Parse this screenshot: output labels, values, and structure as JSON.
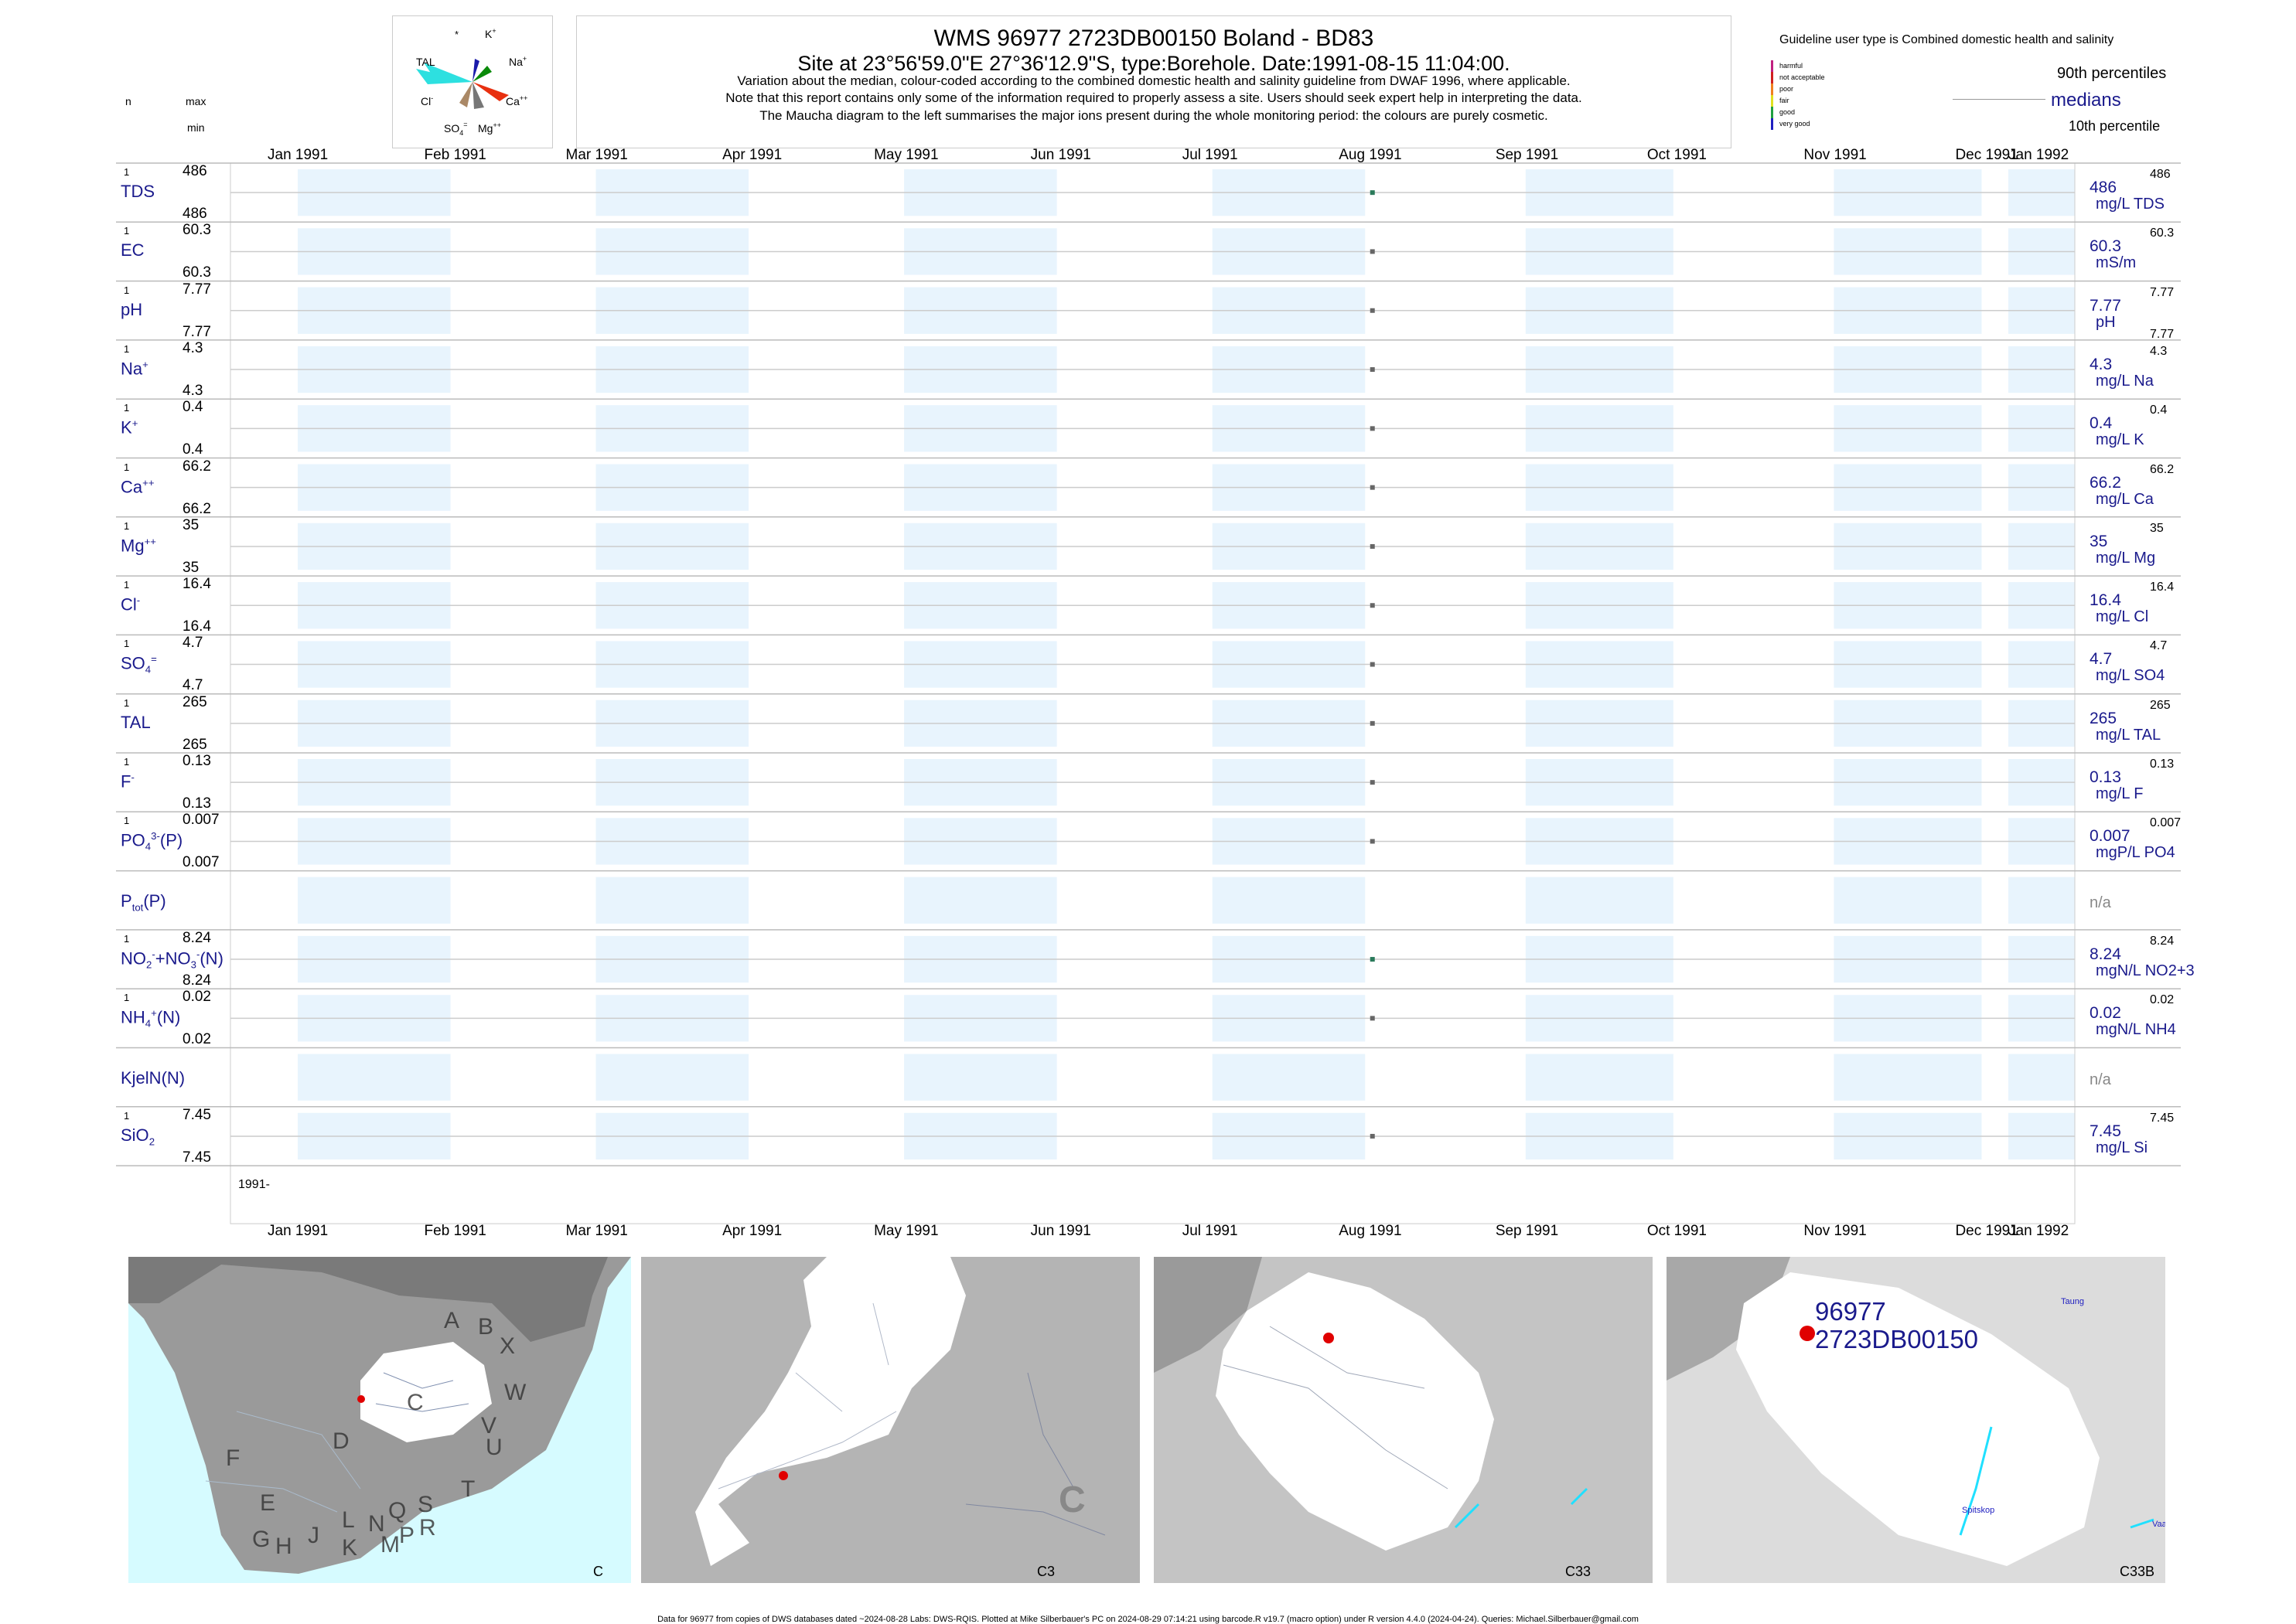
{
  "header": {
    "title": "WMS 96977 2723DB00150 Boland - BD83",
    "subtitle": "Site at 23°56'59.0\"E 27°36'12.9\"S, type:Borehole. Date:1991-08-15 11:04:00.",
    "note1": "Variation about the median,  colour-coded according to the combined domestic health and salinity guideline from DWAF 1996, where applicable.",
    "note2": "Note that this report contains only some of the information required to properly assess a site. Users should seek expert help in interpreting the data.",
    "note3": "The Maucha diagram to the left summarises the major ions present during the whole monitoring period: the colours are purely cosmetic."
  },
  "left_header": {
    "n": "n",
    "max": "max",
    "min": "min"
  },
  "maucha": {
    "star": "*",
    "labels": {
      "k": "K",
      "na": "Na",
      "ca": "Ca",
      "mg": "Mg",
      "so4": "SO",
      "cl": "Cl",
      "tal": "TAL"
    },
    "colors": {
      "k": "#1a1aaa",
      "na": "#0a8a0a",
      "ca": "#e83010",
      "mg": "#777777",
      "so4": "#aa8866",
      "cl": "#ffffff",
      "tal": "#2de0e0"
    }
  },
  "legend": {
    "guideline": "Guideline user type is Combined domestic health and salinity",
    "categories": [
      {
        "label": "harmful",
        "color": "#c02080"
      },
      {
        "label": "not acceptable",
        "color": "#d02020"
      },
      {
        "label": "poor",
        "color": "#f08020"
      },
      {
        "label": "fair",
        "color": "#e0e020"
      },
      {
        "label": "good",
        "color": "#20a040"
      },
      {
        "label": "very good",
        "color": "#2020c0"
      }
    ],
    "p90": "90th percentiles",
    "medians": "medians",
    "p10": "10th percentile"
  },
  "chart_data": {
    "type": "scatter",
    "x_axis": {
      "start": "1991-01-01",
      "end": "1992-01-01",
      "tick_labels": [
        "Jan 1991",
        "Feb 1991",
        "Mar 1991",
        "Apr 1991",
        "May 1991",
        "Jun 1991",
        "Jul 1991",
        "Aug 1991",
        "Sep 1991",
        "Oct 1991",
        "Nov 1991",
        "Dec 1991",
        "Jan 1992"
      ],
      "year_label": "1991-"
    },
    "sample_date": "1991-08-15",
    "shading": "alternate months shaded light blue",
    "series": [
      {
        "label": "TDS",
        "n": "1",
        "max": "486",
        "min": "486",
        "median": "486",
        "unit": "mg/L TDS",
        "p90": "486",
        "p10": "",
        "value": 486,
        "color": "#2a7a5a"
      },
      {
        "label": "EC",
        "n": "1",
        "max": "60.3",
        "min": "60.3",
        "median": "60.3",
        "unit": "mS/m",
        "p90": "60.3",
        "p10": "",
        "value": 60.3,
        "color": "#666666"
      },
      {
        "label": "pH",
        "n": "1",
        "max": "7.77",
        "min": "7.77",
        "median": "7.77",
        "unit": "pH",
        "p90": "7.77",
        "p10": "7.77",
        "value": 7.77,
        "color": "#666666"
      },
      {
        "label": "Na+",
        "n": "1",
        "max": "4.3",
        "min": "4.3",
        "median": "4.3",
        "unit": "mg/L Na",
        "p90": "4.3",
        "p10": "",
        "value": 4.3,
        "color": "#666666"
      },
      {
        "label": "K+",
        "n": "1",
        "max": "0.4",
        "min": "0.4",
        "median": "0.4",
        "unit": "mg/L K",
        "p90": "0.4",
        "p10": "",
        "value": 0.4,
        "color": "#666666"
      },
      {
        "label": "Ca++",
        "n": "1",
        "max": "66.2",
        "min": "66.2",
        "median": "66.2",
        "unit": "mg/L Ca",
        "p90": "66.2",
        "p10": "",
        "value": 66.2,
        "color": "#666666"
      },
      {
        "label": "Mg++",
        "n": "1",
        "max": "35",
        "min": "35",
        "median": "35",
        "unit": "mg/L Mg",
        "p90": "35",
        "p10": "",
        "value": 35,
        "color": "#666666"
      },
      {
        "label": "Cl-",
        "n": "1",
        "max": "16.4",
        "min": "16.4",
        "median": "16.4",
        "unit": "mg/L Cl",
        "p90": "16.4",
        "p10": "",
        "value": 16.4,
        "color": "#666666"
      },
      {
        "label": "SO4=",
        "n": "1",
        "max": "4.7",
        "min": "4.7",
        "median": "4.7",
        "unit": "mg/L SO4",
        "p90": "4.7",
        "p10": "",
        "value": 4.7,
        "color": "#666666"
      },
      {
        "label": "TAL",
        "n": "1",
        "max": "265",
        "min": "265",
        "median": "265",
        "unit": "mg/L TAL",
        "p90": "265",
        "p10": "",
        "value": 265,
        "color": "#666666"
      },
      {
        "label": "F-",
        "n": "1",
        "max": "0.13",
        "min": "0.13",
        "median": "0.13",
        "unit": "mg/L F",
        "p90": "0.13",
        "p10": "",
        "value": 0.13,
        "color": "#666666"
      },
      {
        "label": "PO4(P)",
        "n": "1",
        "max": "0.007",
        "min": "0.007",
        "median": "0.007",
        "unit": "mgP/L PO4",
        "p90": "0.007",
        "p10": "",
        "value": 0.007,
        "color": "#666666"
      },
      {
        "label": "Ptot(P)",
        "n": "",
        "max": "",
        "min": "",
        "median": "n/a",
        "unit": "",
        "p90": "",
        "p10": "",
        "value": null,
        "color": "#666666"
      },
      {
        "label": "NO2+NO3(N)",
        "n": "1",
        "max": "8.24",
        "min": "8.24",
        "median": "8.24",
        "unit": "mgN/L NO2+3",
        "p90": "8.24",
        "p10": "",
        "value": 8.24,
        "color": "#2a7a5a"
      },
      {
        "label": "NH4(N)",
        "n": "1",
        "max": "0.02",
        "min": "0.02",
        "median": "0.02",
        "unit": "mgN/L NH4",
        "p90": "0.02",
        "p10": "",
        "value": 0.02,
        "color": "#666666"
      },
      {
        "label": "KjelN(N)",
        "n": "",
        "max": "",
        "min": "",
        "median": "n/a",
        "unit": "",
        "p90": "",
        "p10": "",
        "value": null,
        "color": "#666666"
      },
      {
        "label": "SiO2",
        "n": "1",
        "max": "7.45",
        "min": "7.45",
        "median": "7.45",
        "unit": "mg/L Si",
        "p90": "7.45",
        "p10": "",
        "value": 7.45,
        "color": "#666666"
      }
    ]
  },
  "maps": [
    {
      "caption": "C",
      "regions": [
        "A",
        "B",
        "X",
        "W",
        "C",
        "V",
        "U",
        "D",
        "T",
        "F",
        "E",
        "S",
        "Q",
        "R",
        "L",
        "N",
        "P",
        "M",
        "K",
        "J",
        "H",
        "G"
      ]
    },
    {
      "caption": "C3",
      "big_letter": "C"
    },
    {
      "caption": "C33"
    },
    {
      "caption": "C33B",
      "site_id": "96977",
      "site_code": "2723DB00150",
      "towns": [
        "Taung",
        "Spitskop",
        "Vaa"
      ]
    }
  ],
  "footer": "Data for 96977 from copies of DWS databases dated ~2024-08-28 Labs: DWS-RQIS. Plotted at Mike Silberbauer's PC on 2024-08-29 07:14:21 using barcode.R v19.7 (macro option) under R version 4.4.0 (2024-04-24). Queries: Michael.Silberbauer@gmail.com"
}
